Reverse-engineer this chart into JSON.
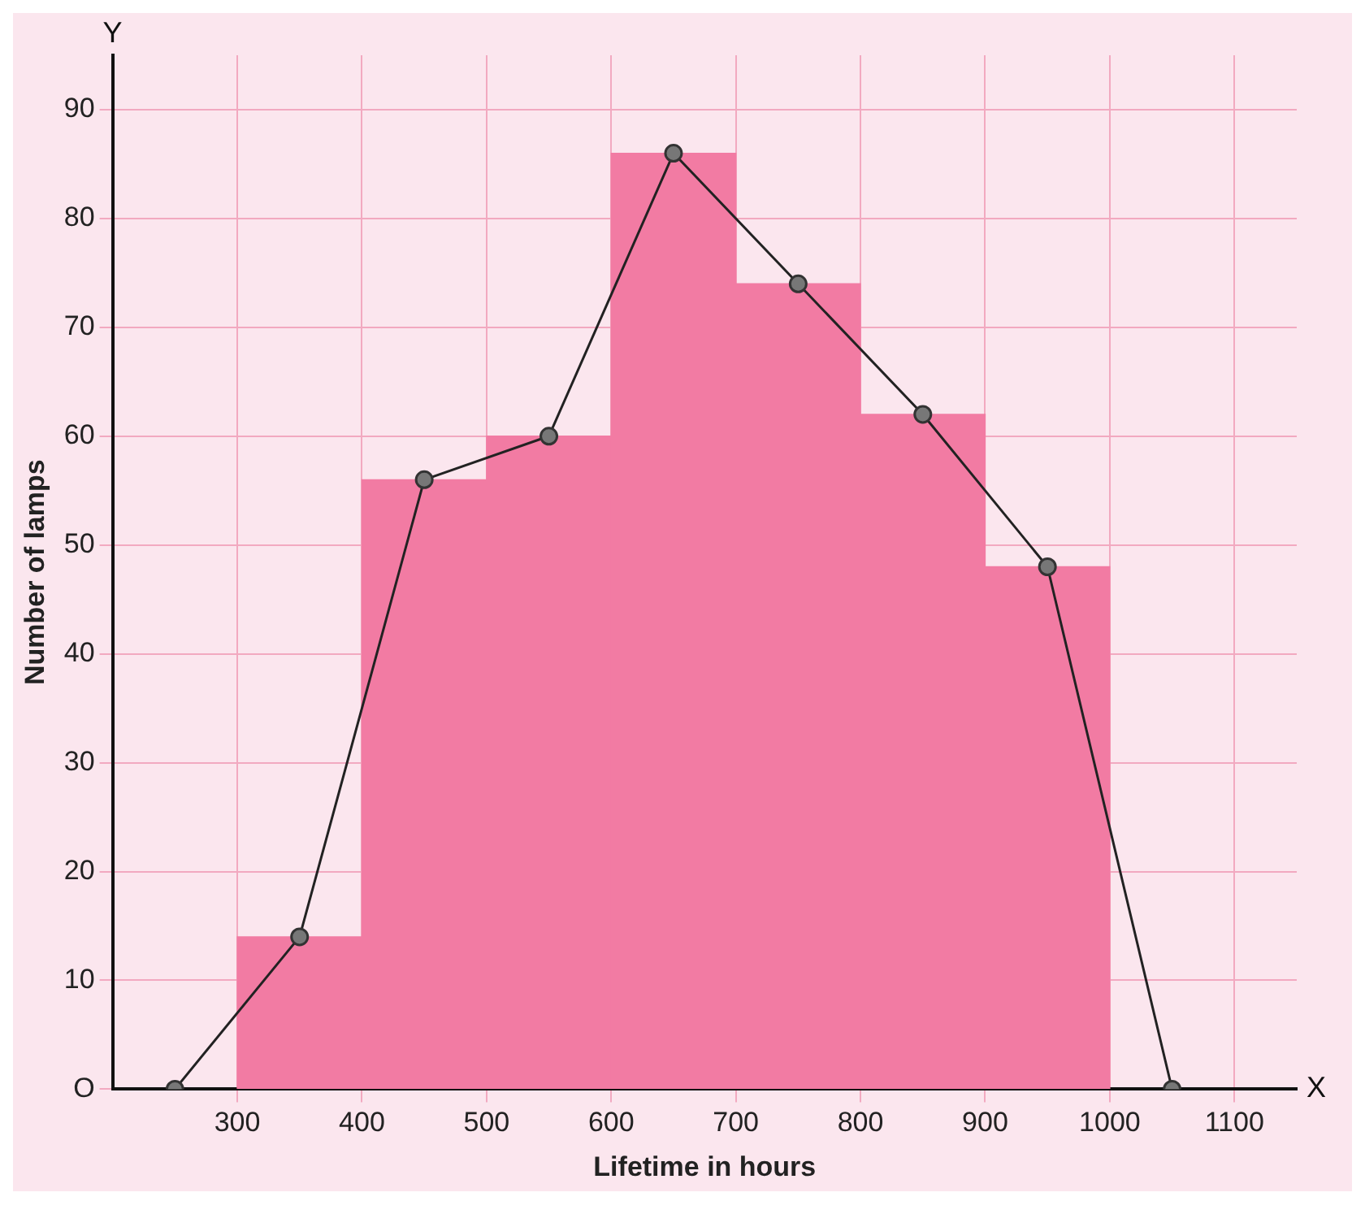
{
  "chart_data": {
    "type": "histogram",
    "xlabel": "Lifetime in hours",
    "ylabel": "Number of lamps",
    "xlim": [
      200,
      1150
    ],
    "xticks": [
      300,
      400,
      500,
      600,
      700,
      800,
      900,
      1000,
      1100
    ],
    "ylim": [
      0,
      95
    ],
    "yticks": [
      {
        "value": 0,
        "label": "O"
      },
      10,
      20,
      30,
      40,
      50,
      60,
      70,
      80,
      90
    ],
    "grid": true,
    "annotations": [
      "X",
      "Y"
    ],
    "series": [
      {
        "type": "histogram",
        "color": "#f27ba3",
        "bins": [
          300,
          400,
          500,
          600,
          700,
          800,
          900,
          1000
        ],
        "values": [
          14,
          56,
          60,
          86,
          74,
          62,
          48
        ]
      },
      {
        "type": "line",
        "color": "#222222",
        "marker": "circle",
        "x": [
          250,
          350,
          450,
          550,
          650,
          750,
          850,
          950,
          1050
        ],
        "values": [
          0,
          14,
          56,
          60,
          86,
          74,
          62,
          48,
          0
        ]
      }
    ]
  }
}
